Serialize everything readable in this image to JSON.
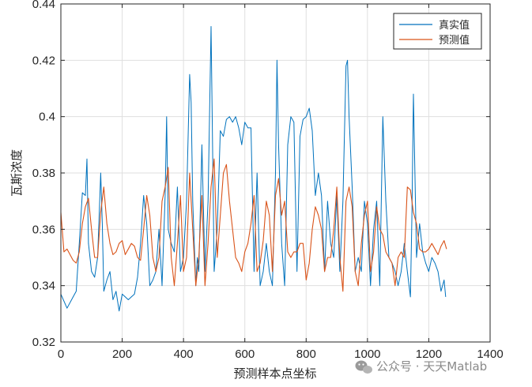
{
  "chart_data": {
    "type": "line",
    "xlabel": "预测样本点坐标",
    "ylabel": "瓦斯浓度",
    "xlim": [
      0,
      1400
    ],
    "ylim": [
      0.32,
      0.44
    ],
    "xticks": [
      0,
      200,
      400,
      600,
      800,
      1000,
      1200,
      1400
    ],
    "xtick_labels": [
      "0",
      "200",
      "400",
      "600",
      "800",
      "1000",
      "1200",
      "1400"
    ],
    "yticks": [
      0.32,
      0.34,
      0.36,
      0.38,
      0.4,
      0.42,
      0.44
    ],
    "ytick_labels": [
      "0.32",
      "0.34",
      "0.36",
      "0.38",
      "0.4",
      "0.42",
      "0.44"
    ],
    "grid": true,
    "legend_position": "top-right",
    "series": [
      {
        "name": "真实值",
        "color": "#0072BD",
        "x": [
          0,
          20,
          40,
          50,
          60,
          70,
          80,
          85,
          90,
          100,
          110,
          120,
          130,
          135,
          140,
          150,
          160,
          170,
          180,
          190,
          200,
          210,
          220,
          230,
          240,
          250,
          260,
          270,
          280,
          290,
          300,
          310,
          320,
          330,
          340,
          345,
          350,
          360,
          370,
          380,
          390,
          400,
          410,
          420,
          425,
          430,
          440,
          445,
          450,
          460,
          470,
          480,
          490,
          500,
          510,
          520,
          530,
          540,
          550,
          560,
          570,
          580,
          590,
          600,
          610,
          620,
          630,
          640,
          650,
          660,
          670,
          680,
          690,
          700,
          705,
          710,
          720,
          730,
          740,
          750,
          760,
          770,
          780,
          790,
          800,
          810,
          820,
          830,
          840,
          850,
          860,
          870,
          880,
          890,
          900,
          910,
          920,
          930,
          935,
          940,
          950,
          960,
          970,
          980,
          990,
          1000,
          1010,
          1020,
          1030,
          1040,
          1050,
          1060,
          1070,
          1080,
          1090,
          1100,
          1110,
          1120,
          1130,
          1140,
          1145,
          1150,
          1160,
          1170,
          1180,
          1190,
          1200,
          1210,
          1220,
          1230,
          1240,
          1250,
          1255
        ],
        "values": [
          0.337,
          0.332,
          0.336,
          0.338,
          0.355,
          0.373,
          0.372,
          0.385,
          0.355,
          0.345,
          0.343,
          0.35,
          0.38,
          0.362,
          0.338,
          0.342,
          0.345,
          0.335,
          0.338,
          0.331,
          0.337,
          0.336,
          0.335,
          0.336,
          0.337,
          0.343,
          0.355,
          0.372,
          0.362,
          0.34,
          0.342,
          0.345,
          0.36,
          0.34,
          0.372,
          0.4,
          0.36,
          0.355,
          0.352,
          0.375,
          0.345,
          0.35,
          0.37,
          0.415,
          0.405,
          0.37,
          0.34,
          0.35,
          0.345,
          0.39,
          0.345,
          0.37,
          0.432,
          0.345,
          0.36,
          0.395,
          0.393,
          0.399,
          0.4,
          0.398,
          0.4,
          0.396,
          0.39,
          0.398,
          0.396,
          0.396,
          0.345,
          0.38,
          0.34,
          0.345,
          0.355,
          0.345,
          0.34,
          0.38,
          0.42,
          0.39,
          0.355,
          0.34,
          0.39,
          0.4,
          0.398,
          0.345,
          0.393,
          0.399,
          0.4,
          0.403,
          0.395,
          0.372,
          0.38,
          0.372,
          0.345,
          0.37,
          0.355,
          0.35,
          0.372,
          0.345,
          0.37,
          0.418,
          0.42,
          0.4,
          0.375,
          0.345,
          0.35,
          0.345,
          0.37,
          0.362,
          0.34,
          0.36,
          0.37,
          0.34,
          0.4,
          0.37,
          0.35,
          0.348,
          0.345,
          0.34,
          0.345,
          0.355,
          0.345,
          0.336,
          0.365,
          0.408,
          0.35,
          0.362,
          0.352,
          0.348,
          0.345,
          0.35,
          0.348,
          0.345,
          0.338,
          0.342,
          0.336
        ],
        "width": 1.0
      },
      {
        "name": "预测值",
        "color": "#D95319",
        "x": [
          0,
          10,
          20,
          30,
          40,
          50,
          60,
          70,
          80,
          90,
          100,
          110,
          120,
          130,
          140,
          150,
          160,
          170,
          180,
          190,
          200,
          210,
          220,
          230,
          240,
          250,
          260,
          270,
          280,
          290,
          300,
          310,
          320,
          330,
          340,
          350,
          360,
          370,
          380,
          390,
          400,
          410,
          420,
          430,
          440,
          450,
          460,
          470,
          480,
          490,
          500,
          510,
          520,
          530,
          540,
          550,
          560,
          570,
          580,
          590,
          600,
          610,
          620,
          630,
          640,
          650,
          660,
          670,
          680,
          690,
          700,
          710,
          720,
          730,
          740,
          750,
          760,
          770,
          780,
          790,
          800,
          810,
          820,
          830,
          840,
          850,
          860,
          870,
          880,
          890,
          900,
          910,
          920,
          930,
          940,
          950,
          960,
          970,
          980,
          990,
          1000,
          1010,
          1020,
          1030,
          1040,
          1050,
          1060,
          1070,
          1080,
          1090,
          1100,
          1110,
          1120,
          1130,
          1140,
          1150,
          1160,
          1170,
          1180,
          1190,
          1200,
          1210,
          1220,
          1230,
          1240,
          1250,
          1258
        ],
        "values": [
          0.366,
          0.352,
          0.353,
          0.351,
          0.349,
          0.348,
          0.352,
          0.362,
          0.368,
          0.371,
          0.36,
          0.35,
          0.35,
          0.366,
          0.375,
          0.362,
          0.355,
          0.351,
          0.352,
          0.355,
          0.356,
          0.351,
          0.353,
          0.355,
          0.354,
          0.35,
          0.349,
          0.36,
          0.372,
          0.365,
          0.35,
          0.345,
          0.35,
          0.37,
          0.375,
          0.382,
          0.35,
          0.34,
          0.355,
          0.372,
          0.345,
          0.35,
          0.38,
          0.36,
          0.34,
          0.35,
          0.372,
          0.34,
          0.355,
          0.375,
          0.385,
          0.35,
          0.365,
          0.38,
          0.383,
          0.37,
          0.36,
          0.35,
          0.348,
          0.345,
          0.352,
          0.355,
          0.362,
          0.372,
          0.345,
          0.348,
          0.356,
          0.37,
          0.365,
          0.345,
          0.372,
          0.378,
          0.365,
          0.37,
          0.352,
          0.35,
          0.352,
          0.352,
          0.355,
          0.355,
          0.342,
          0.348,
          0.36,
          0.368,
          0.365,
          0.36,
          0.345,
          0.35,
          0.35,
          0.36,
          0.375,
          0.35,
          0.338,
          0.37,
          0.375,
          0.368,
          0.345,
          0.34,
          0.355,
          0.365,
          0.37,
          0.345,
          0.352,
          0.368,
          0.36,
          0.358,
          0.352,
          0.35,
          0.348,
          0.34,
          0.35,
          0.352,
          0.35,
          0.375,
          0.374,
          0.366,
          0.362,
          0.353,
          0.352,
          0.352,
          0.353,
          0.355,
          0.353,
          0.351,
          0.354,
          0.356,
          0.353
        ],
        "width": 1.1
      }
    ]
  },
  "watermark": {
    "text": "公众号 · 天天Matlab"
  }
}
